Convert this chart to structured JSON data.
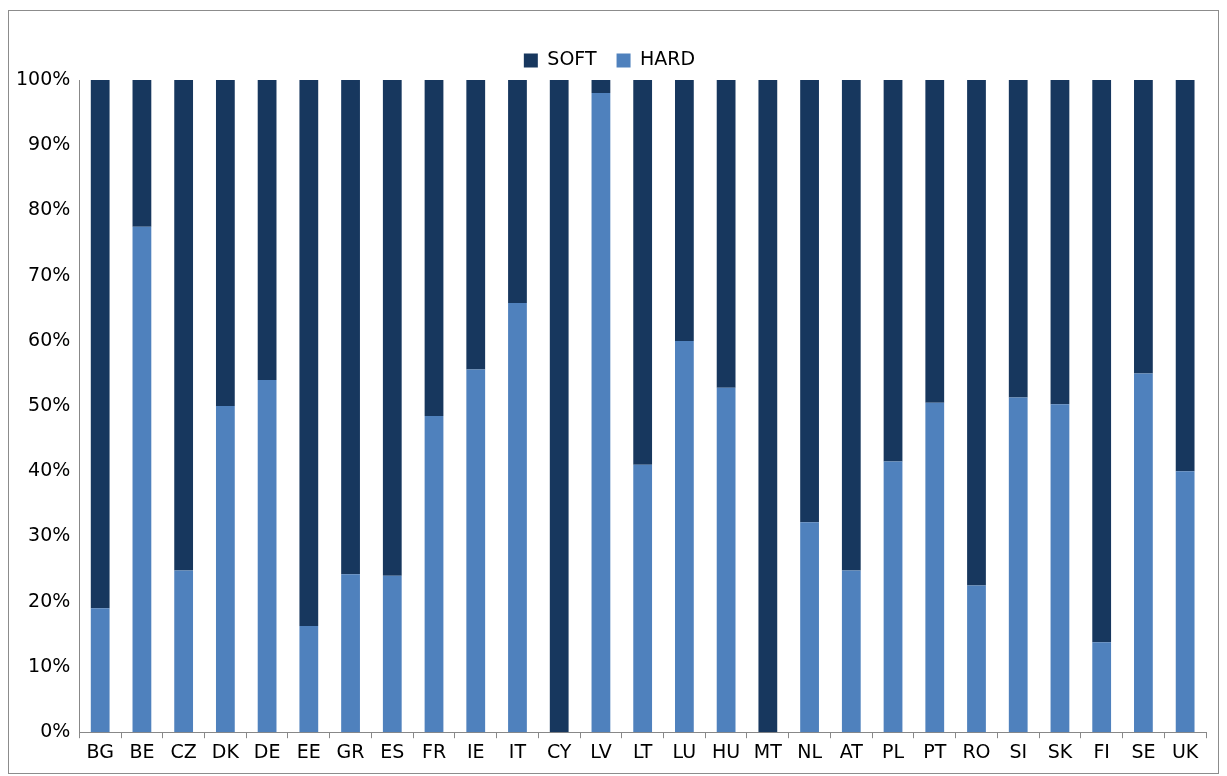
{
  "chart_data": {
    "type": "bar",
    "stacked": true,
    "legend": "top",
    "grid": false,
    "categories": [
      "BG",
      "BE",
      "CZ",
      "DK",
      "DE",
      "EE",
      "GR",
      "ES",
      "FR",
      "IE",
      "IT",
      "CY",
      "LV",
      "LT",
      "LU",
      "HU",
      "MT",
      "NL",
      "AT",
      "PL",
      "PT",
      "RO",
      "SI",
      "SK",
      "FI",
      "SE",
      "UK"
    ],
    "series": [
      {
        "name": "HARD",
        "color": "#4f81bd",
        "values": [
          19,
          77.5,
          24.8,
          50,
          54,
          16.3,
          24.2,
          24,
          48.5,
          55.6,
          65.8,
          0,
          98,
          41,
          60,
          52.8,
          0,
          32.2,
          24.8,
          41.5,
          50.5,
          22.5,
          51.3,
          50.3,
          13.8,
          55,
          40
        ]
      },
      {
        "name": "SOFT",
        "color": "#17375e",
        "values": [
          81,
          22.5,
          75.2,
          50,
          46,
          83.7,
          75.8,
          76,
          51.5,
          44.4,
          34.2,
          100,
          2,
          59,
          40,
          47.2,
          100,
          67.8,
          75.2,
          58.5,
          49.5,
          77.5,
          48.7,
          49.7,
          86.2,
          45,
          60
        ]
      }
    ],
    "ylim": [
      0,
      100
    ],
    "yticks": [
      {
        "value": 0,
        "label": "0%"
      },
      {
        "value": 10,
        "label": "10%"
      },
      {
        "value": 20,
        "label": "20%"
      },
      {
        "value": 30,
        "label": "30%"
      },
      {
        "value": 40,
        "label": "40%"
      },
      {
        "value": 50,
        "label": "50%"
      },
      {
        "value": 60,
        "label": "60%"
      },
      {
        "value": 70,
        "label": "70%"
      },
      {
        "value": 80,
        "label": "80%"
      },
      {
        "value": 90,
        "label": "90%"
      },
      {
        "value": 100,
        "label": "100%"
      }
    ]
  }
}
